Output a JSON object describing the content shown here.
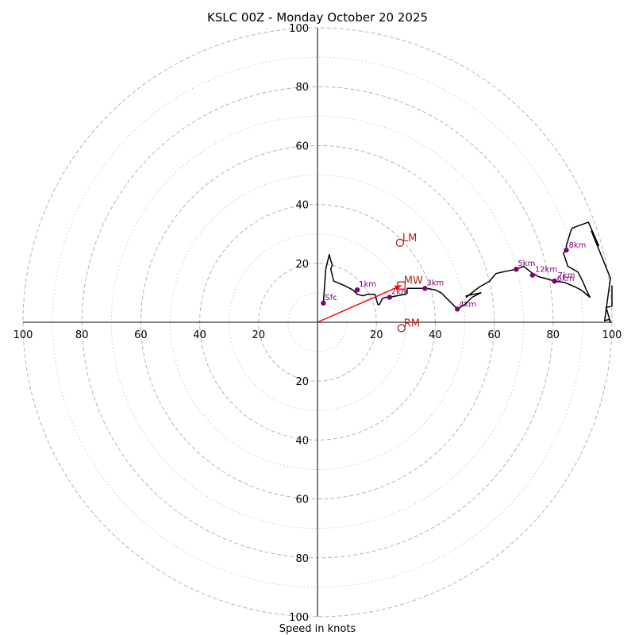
{
  "chart_data": {
    "type": "hodograph",
    "title": "KSLC 00Z - Monday October 20 2025",
    "xlabel": "Speed in knots",
    "units": "knots",
    "axis_range": [
      -100,
      100
    ],
    "rings_major": [
      20,
      40,
      60,
      80,
      100
    ],
    "rings_minor": [
      10,
      30,
      50,
      70,
      90
    ],
    "x_tick_labels": [
      "100",
      "80",
      "60",
      "40",
      "20",
      "20",
      "40",
      "60",
      "80",
      "100"
    ],
    "y_tick_labels": [
      "100",
      "80",
      "60",
      "40",
      "20",
      "20",
      "40",
      "60",
      "80",
      "100"
    ],
    "x_tick_values": [
      -100,
      -80,
      -60,
      -40,
      -20,
      20,
      40,
      60,
      80,
      100
    ],
    "y_tick_values": [
      100,
      80,
      60,
      40,
      20,
      -20,
      -40,
      -60,
      -80,
      -100
    ],
    "trace_color": "#000000",
    "marker_color": "#800080",
    "motion_color": "#b22222",
    "shear_vector_color": "#ff0000",
    "trace": [
      [
        2,
        6.5
      ],
      [
        2.8,
        18
      ],
      [
        4,
        23
      ],
      [
        4.5,
        21
      ],
      [
        5,
        19.5
      ],
      [
        4.5,
        18
      ],
      [
        5,
        16
      ],
      [
        5.5,
        14
      ],
      [
        9,
        12.5
      ],
      [
        12,
        11
      ],
      [
        13.5,
        9.5
      ],
      [
        15.5,
        9
      ],
      [
        17,
        9.5
      ],
      [
        19.5,
        9.5
      ],
      [
        20.5,
        6
      ],
      [
        21,
        6
      ],
      [
        21.5,
        7
      ],
      [
        22,
        8
      ],
      [
        23,
        8.5
      ],
      [
        24.5,
        8.5
      ],
      [
        27,
        9
      ],
      [
        30,
        9.5
      ],
      [
        30.5,
        11.5
      ],
      [
        34.5,
        11.5
      ],
      [
        37,
        11.5
      ],
      [
        40,
        11
      ],
      [
        42,
        10
      ],
      [
        44,
        8
      ],
      [
        46,
        6
      ],
      [
        47.5,
        4.5
      ],
      [
        50,
        6
      ],
      [
        52.5,
        8.5
      ],
      [
        55.5,
        10
      ],
      [
        50.5,
        9
      ],
      [
        50.5,
        8.5
      ],
      [
        55,
        12
      ],
      [
        58.5,
        14
      ],
      [
        60.5,
        16.5
      ],
      [
        62.5,
        17
      ],
      [
        67.5,
        18
      ],
      [
        70,
        19
      ],
      [
        72.5,
        17
      ],
      [
        75,
        15.5
      ],
      [
        77,
        15
      ],
      [
        80.5,
        14
      ],
      [
        84,
        13.5
      ],
      [
        87.5,
        12
      ],
      [
        89.5,
        11
      ],
      [
        92.5,
        8.5
      ],
      [
        91.5,
        10.5
      ],
      [
        90,
        14
      ],
      [
        88.5,
        17
      ],
      [
        85,
        19
      ],
      [
        83.5,
        23.5
      ],
      [
        84.5,
        24.5
      ],
      [
        84.5,
        26
      ],
      [
        86,
        31
      ],
      [
        86.5,
        32
      ],
      [
        92,
        34
      ],
      [
        95.5,
        26
      ],
      [
        94.5,
        28
      ],
      [
        93,
        31
      ],
      [
        99.5,
        15
      ],
      [
        97.5,
        0.5
      ],
      [
        99,
        1
      ],
      [
        99.5,
        0
      ],
      [
        98,
        5
      ],
      [
        100,
        5.5
      ],
      [
        100,
        12.5
      ]
    ],
    "height_markers": [
      {
        "label": "Sfc",
        "u": 2,
        "v": 6.5
      },
      {
        "label": "1km",
        "u": 13.5,
        "v": 11
      },
      {
        "label": "2km",
        "u": 24.5,
        "v": 8.5
      },
      {
        "label": "3km",
        "u": 36.5,
        "v": 11.5
      },
      {
        "label": "4km",
        "u": 47.5,
        "v": 4.5
      },
      {
        "label": "5km",
        "u": 67.5,
        "v": 18
      },
      {
        "label": "12km",
        "u": 73,
        "v": 16
      },
      {
        "label": "6km",
        "u": 80.5,
        "v": 14
      },
      {
        "label": "7km",
        "u": 80.5,
        "v": 14
      },
      {
        "label": "8km",
        "u": 84.5,
        "v": 24.5
      }
    ],
    "storm_motion": [
      {
        "label": "LM",
        "u": 28,
        "v": 27,
        "marker": "circle"
      },
      {
        "label": "MW",
        "u": 28.5,
        "v": 12.5,
        "marker": "square"
      },
      {
        "label": "RM",
        "u": 28.5,
        "v": -2,
        "marker": "circle"
      }
    ],
    "shear_vector": {
      "u": 28.5,
      "v": 12.5
    }
  }
}
